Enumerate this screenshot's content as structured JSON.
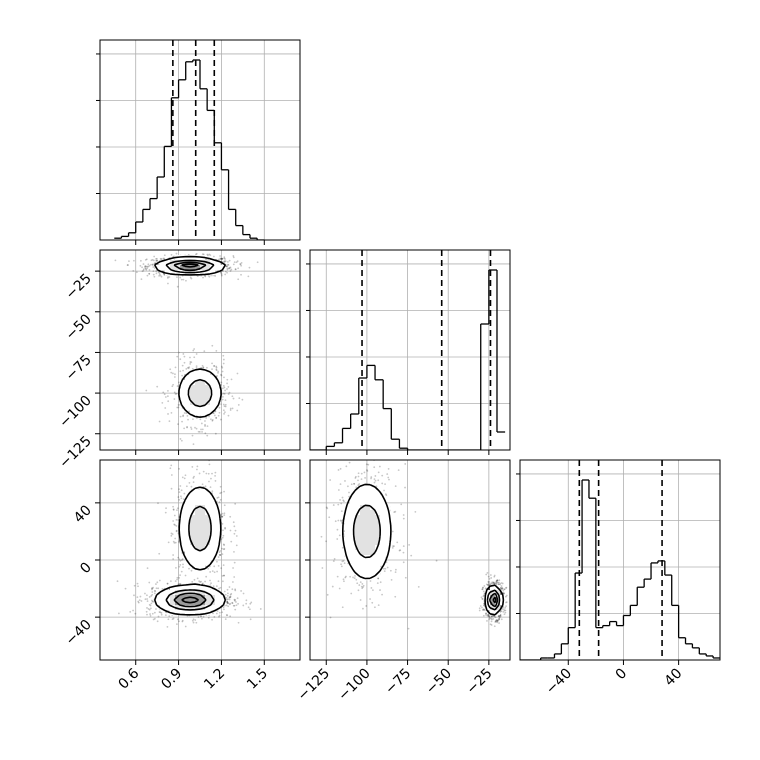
{
  "chart_data": {
    "type": "corner",
    "title": "",
    "grid": true,
    "params": [
      {
        "xlim": [
          0.35,
          1.75
        ],
        "ticks": [
          0.6,
          0.9,
          1.2,
          1.5
        ],
        "tick_labels": [
          "0.6",
          "0.9",
          "1.2",
          "1.5"
        ],
        "hist_edges": [
          0.45,
          0.5,
          0.55,
          0.6,
          0.65,
          0.7,
          0.75,
          0.8,
          0.85,
          0.9,
          0.95,
          1.0,
          1.05,
          1.1,
          1.15,
          1.2,
          1.25,
          1.3,
          1.35,
          1.4,
          1.45,
          1.5
        ],
        "hist_counts": [
          0.01,
          0.02,
          0.04,
          0.1,
          0.17,
          0.23,
          0.35,
          0.52,
          0.79,
          0.89,
          0.99,
          1.0,
          0.84,
          0.72,
          0.54,
          0.39,
          0.17,
          0.08,
          0.03,
          0.01,
          0.0
        ],
        "quantiles": [
          0.86,
          1.02,
          1.15
        ]
      },
      {
        "ylim": [
          -135,
          -12
        ],
        "xlim": [
          -135,
          -12
        ],
        "ticks": [
          -125,
          -100,
          -75,
          -50,
          -25
        ],
        "tick_labels": [
          "−125",
          "−100",
          "−75",
          "−50",
          "−25"
        ],
        "hist_edges": [
          -135,
          -130,
          -125,
          -120,
          -115,
          -110,
          -105,
          -100,
          -95,
          -90,
          -85,
          -80,
          -75,
          -70,
          -65,
          -60,
          -55,
          -50,
          -45,
          -40,
          -35,
          -30,
          -25,
          -20,
          -15
        ],
        "hist_counts": [
          0.0,
          0.0,
          0.02,
          0.04,
          0.12,
          0.2,
          0.4,
          0.47,
          0.39,
          0.23,
          0.06,
          0.01,
          0.0,
          0.0,
          0.0,
          0.0,
          0.0,
          0.0,
          0.0,
          0.0,
          0.0,
          0.7,
          1.0,
          0.1
        ],
        "quantiles": [
          -103,
          -54,
          -24
        ]
      },
      {
        "ylim": [
          -70,
          70
        ],
        "xlim": [
          -75,
          70
        ],
        "ticks": [
          -40,
          0,
          40
        ],
        "tick_labels": [
          "−40",
          "0",
          "40"
        ],
        "hist_edges": [
          -75,
          -70,
          -65,
          -60,
          -55,
          -50,
          -45,
          -40,
          -35,
          -30,
          -25,
          -20,
          -15,
          -10,
          -5,
          0,
          5,
          10,
          15,
          20,
          25,
          30,
          35,
          40,
          45,
          50,
          55,
          60,
          65,
          70
        ],
        "hist_counts": [
          0.0,
          0.0,
          0.0,
          0.01,
          0.01,
          0.03,
          0.08,
          0.16,
          0.43,
          0.89,
          0.8,
          0.16,
          0.17,
          0.19,
          0.17,
          0.22,
          0.27,
          0.36,
          0.4,
          0.48,
          0.49,
          0.42,
          0.27,
          0.11,
          0.08,
          0.06,
          0.03,
          0.02,
          0.01
        ],
        "quantiles": [
          -32,
          -18,
          28
        ]
      }
    ],
    "density_2d": [
      {
        "pair": [
          0,
          1
        ],
        "modes": [
          {
            "x": 0.98,
            "y": -22,
            "sx": 0.12,
            "sy": 2.5,
            "w": 0.62
          },
          {
            "x": 1.05,
            "y": -100,
            "sx": 0.08,
            "sy": 8,
            "w": 0.38
          }
        ]
      },
      {
        "pair": [
          0,
          2
        ],
        "modes": [
          {
            "x": 0.98,
            "y": -28,
            "sx": 0.12,
            "sy": 5,
            "w": 0.62
          },
          {
            "x": 1.05,
            "y": 22,
            "sx": 0.08,
            "sy": 16,
            "w": 0.38
          }
        ]
      },
      {
        "pair": [
          1,
          2
        ],
        "modes": [
          {
            "x": -100,
            "y": 20,
            "sx": 8,
            "sy": 18,
            "w": 0.38
          },
          {
            "x": -22,
            "y": -28,
            "sx": 2.5,
            "sy": 5,
            "w": 0.62
          }
        ]
      }
    ]
  }
}
